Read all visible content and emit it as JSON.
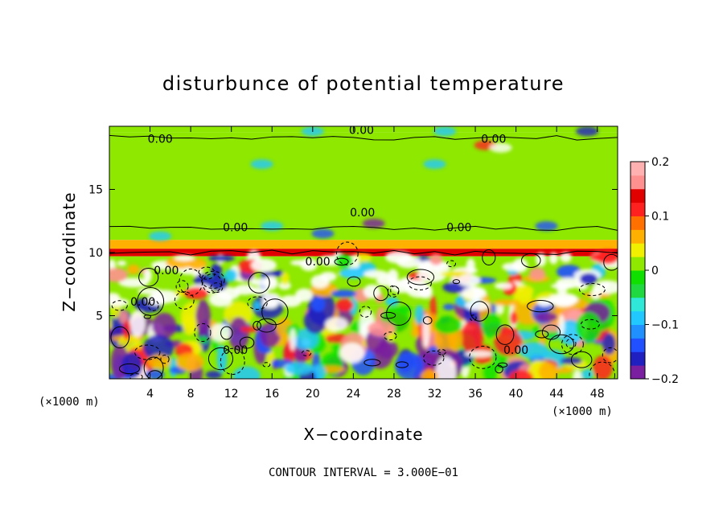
{
  "chart_data": {
    "type": "heatmap",
    "title": "disturbunce of potential temperature",
    "xlabel": "X−coordinate",
    "ylabel": "Z−coordinate",
    "x_unit": "(×1000 m)",
    "z_unit": "(×1000 m)",
    "xlim": [
      0,
      50
    ],
    "ylim": [
      0,
      20
    ],
    "x_ticks": [
      "4",
      "8",
      "12",
      "16",
      "20",
      "24",
      "28",
      "32",
      "36",
      "40",
      "44",
      "48"
    ],
    "y_ticks": [
      "5",
      "10",
      "15"
    ],
    "colorbar": {
      "range": [
        -0.2,
        0.2
      ],
      "tick_labels": [
        "0.2",
        "0.1",
        "0",
        "−0.1",
        "−0.2"
      ],
      "tick_values": [
        0.2,
        0.1,
        0,
        -0.1,
        -0.2
      ],
      "colors": [
        "#7a1fa0",
        "#2020c0",
        "#2050ff",
        "#2090ff",
        "#20c8ff",
        "#30e8d8",
        "#20d840",
        "#10e000",
        "#8ee800",
        "#f0f000",
        "#ffb000",
        "#ff7000",
        "#ff2020",
        "#e00000",
        "#ff9090",
        "#ffb0b0"
      ]
    },
    "contour_interval": "CONTOUR INTERVAL = 3.000E−01",
    "contour_labels": [
      {
        "text": "0.00",
        "x": 5.0,
        "z": 19.0
      },
      {
        "text": "0.00",
        "x": 24.8,
        "z": 19.7
      },
      {
        "text": "0.00",
        "x": 37.8,
        "z": 19.0
      },
      {
        "text": "0.00",
        "x": 24.9,
        "z": 13.2
      },
      {
        "text": "0.00",
        "x": 12.4,
        "z": 12.0
      },
      {
        "text": "0.00",
        "x": 34.4,
        "z": 12.0
      },
      {
        "text": "0.00",
        "x": 5.6,
        "z": 8.6
      },
      {
        "text": "0.00",
        "x": 20.5,
        "z": 9.3
      },
      {
        "text": "0.00",
        "x": 3.3,
        "z": 6.1
      },
      {
        "text": "0.00",
        "x": 40.0,
        "z": 2.3
      },
      {
        "text": "0.00",
        "x": 12.4,
        "z": 2.3
      }
    ],
    "bands": [
      {
        "z_from": 19.5,
        "z_to": 20.0,
        "value": 0.02
      },
      {
        "z_from": 11.0,
        "z_to": 19.5,
        "value": 0.0
      },
      {
        "z_from": 10.3,
        "z_to": 11.0,
        "value": 0.06
      },
      {
        "z_from": 9.7,
        "z_to": 10.3,
        "value": 0.14
      },
      {
        "z_from": 5.8,
        "z_to": 9.7,
        "value": 0.0
      },
      {
        "z_from": 0.0,
        "z_to": 5.8,
        "value": 0.0
      }
    ],
    "grid": false,
    "legend": "colorbar right"
  }
}
